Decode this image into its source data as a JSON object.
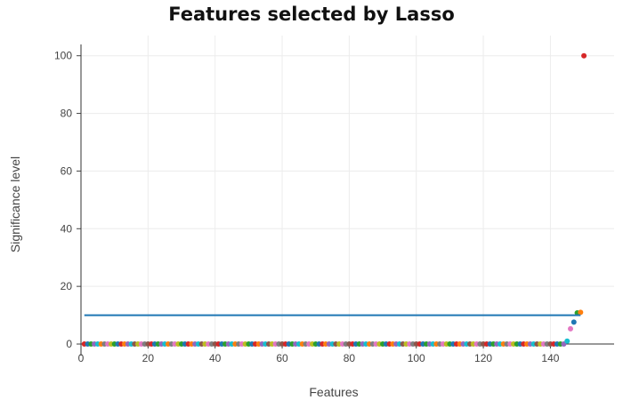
{
  "chart_data": {
    "type": "scatter",
    "title": "Features selected by Lasso",
    "xlabel": "Features",
    "ylabel": "Significance level",
    "xlim": [
      0,
      159
    ],
    "ylim": [
      -4,
      107
    ],
    "xticks": [
      0,
      20,
      40,
      60,
      80,
      100,
      120,
      140
    ],
    "yticks": [
      0,
      20,
      40,
      60,
      80,
      100
    ],
    "grid": true,
    "legend": "none",
    "palette": [
      "#1f77b4",
      "#ff7f0e",
      "#2ca02c",
      "#d62728",
      "#9467bd",
      "#8c564b",
      "#e377c2",
      "#7f7f7f",
      "#bcbd22",
      "#17becf"
    ],
    "zero_points": {
      "x_start": 1,
      "x_end": 144,
      "y": 0
    },
    "nonzero_points": [
      {
        "x": 145,
        "y": 1,
        "color": "#17becf"
      },
      {
        "x": 146,
        "y": 5.3,
        "color": "#e377c2"
      },
      {
        "x": 147,
        "y": 7.6,
        "color": "#1f77b4"
      },
      {
        "x": 148,
        "y": 10.8,
        "color": "#2ca02c"
      },
      {
        "x": 149,
        "y": 11,
        "color": "#ff7f0e"
      },
      {
        "x": 150,
        "y": 100,
        "color": "#d62728"
      }
    ],
    "threshold_line": {
      "y": 10,
      "x_start": 1,
      "x_end": 149,
      "color": "#1f77b4"
    }
  }
}
